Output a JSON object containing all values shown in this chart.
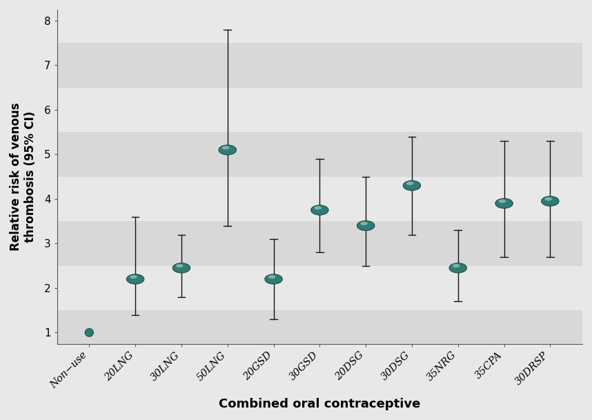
{
  "categories": [
    "Non-use",
    "20LNG",
    "30LNG",
    "50LNG",
    "20GSD",
    "30GSD",
    "20DSG",
    "30DSG",
    "35NRG",
    "35CPA",
    "30DRSP"
  ],
  "x_labels": [
    "Non−use",
    "20LNG",
    "30LNG",
    "50LNG",
    "20GSD",
    "30GSD",
    "20DSG",
    "30DSG",
    "35NRG",
    "35CPA",
    "30DRSP"
  ],
  "point_estimates": [
    1.0,
    2.2,
    2.45,
    5.1,
    2.2,
    3.75,
    3.4,
    4.3,
    2.45,
    3.9,
    3.95
  ],
  "ci_low": [
    null,
    1.4,
    1.8,
    3.4,
    1.3,
    2.8,
    2.5,
    3.2,
    1.7,
    2.7,
    2.7
  ],
  "ci_high": [
    null,
    3.6,
    3.2,
    7.8,
    3.1,
    4.9,
    4.5,
    5.4,
    3.3,
    5.3,
    5.3
  ],
  "ylabel": "Relative risk of venous\nthrombosis (95% CI)",
  "xlabel": "Combined oral contraceptive",
  "ylim": [
    0.75,
    8.25
  ],
  "yticks": [
    1,
    2,
    3,
    4,
    5,
    6,
    7,
    8
  ],
  "band_color_dark": "#d8d8d8",
  "band_color_light": "#e8e8e8",
  "point_color": "#2e7d74",
  "point_edge_color": "#1a4a46",
  "error_color": "#111111",
  "figsize": [
    8.58,
    6.08
  ],
  "dpi": 100
}
